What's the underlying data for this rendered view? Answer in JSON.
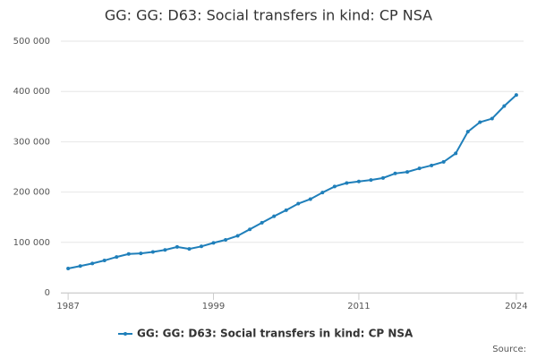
{
  "chart_data": {
    "type": "line",
    "title": "GG: GG: D63: Social transfers in kind: CP NSA",
    "x": [
      1987,
      1988,
      1989,
      1990,
      1991,
      1992,
      1993,
      1994,
      1995,
      1996,
      1997,
      1998,
      1999,
      2000,
      2001,
      2002,
      2003,
      2004,
      2005,
      2006,
      2007,
      2008,
      2009,
      2010,
      2011,
      2012,
      2013,
      2014,
      2015,
      2016,
      2017,
      2018,
      2019,
      2020,
      2021,
      2022,
      2023,
      2024
    ],
    "series": [
      {
        "name": "GG: GG: D63: Social transfers in kind: CP NSA",
        "color": "#1f7fba",
        "values": [
          48000,
          53000,
          58000,
          64000,
          71000,
          77000,
          78000,
          81000,
          85000,
          91000,
          87000,
          92000,
          99000,
          105000,
          113000,
          126000,
          139000,
          152000,
          164000,
          177000,
          186000,
          199000,
          211000,
          218000,
          221000,
          224000,
          228000,
          237000,
          240000,
          247000,
          253000,
          260000,
          277000,
          320000,
          339000,
          346000,
          371000,
          393000
        ]
      }
    ],
    "xlim": [
      1986.4,
      2024.6
    ],
    "xticks": [
      1987,
      1999,
      2011,
      2024
    ],
    "ylim": [
      0,
      500000
    ],
    "yticks": [
      0,
      {
        "value": 100000,
        "label": "100 000"
      },
      {
        "value": 200000,
        "label": "200 000"
      },
      {
        "value": 300000,
        "label": "300 000"
      },
      {
        "value": 400000,
        "label": "400 000"
      },
      {
        "value": 500000,
        "label": "500 000"
      }
    ],
    "grid": true,
    "source": "Source:"
  }
}
